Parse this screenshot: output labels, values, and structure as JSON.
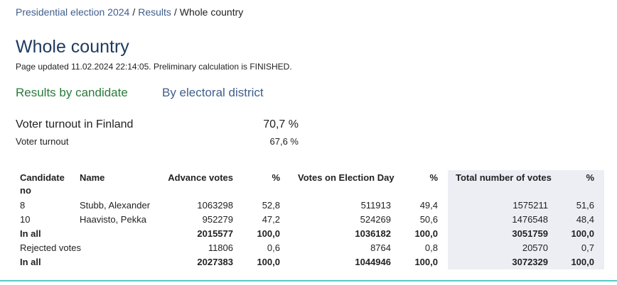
{
  "breadcrumb": {
    "items": [
      "Presidential election 2024",
      "Results",
      "Whole country"
    ],
    "separator": "/"
  },
  "header": {
    "title": "Whole country",
    "updated": "Page updated 11.02.2024 22:14:05. Preliminary calculation is FINISHED."
  },
  "tabs": [
    "Results by candidate",
    "By electoral district"
  ],
  "turnout": {
    "finland": {
      "label": "Voter turnout in Finland",
      "value": "70,7 %"
    },
    "total": {
      "label": "Voter turnout",
      "value": "67,6 %"
    }
  },
  "table": {
    "headers": [
      "Candidate no",
      "Name",
      "Advance votes",
      "%",
      "Votes on Election Day",
      "%",
      "Total number of votes",
      "%"
    ],
    "rows": [
      {
        "cells": [
          "8",
          "Stubb, Alexander",
          "1063298",
          "52,8",
          "511913",
          "49,4",
          "1575211",
          "51,6"
        ],
        "bold": false
      },
      {
        "cells": [
          "10",
          "Haavisto, Pekka",
          "952279",
          "47,2",
          "524269",
          "50,6",
          "1476548",
          "48,4"
        ],
        "bold": false
      },
      {
        "cells": [
          "In all",
          "",
          "2015577",
          "100,0",
          "1036182",
          "100,0",
          "3051759",
          "100,0"
        ],
        "bold": true
      },
      {
        "cells": [
          "Rejected votes",
          "",
          "11806",
          "0,6",
          "8764",
          "0,8",
          "20570",
          "0,7"
        ],
        "bold": false
      },
      {
        "cells": [
          "In all",
          "",
          "2027383",
          "100,0",
          "1044946",
          "100,0",
          "3072329",
          "100,0"
        ],
        "bold": true
      }
    ]
  }
}
